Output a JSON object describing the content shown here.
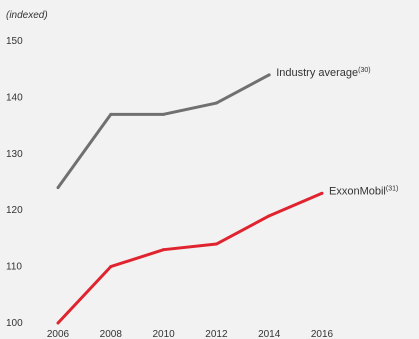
{
  "chart_data": {
    "type": "line",
    "unit_label": "(indexed)",
    "x": [
      2006,
      2008,
      2010,
      2012,
      2014,
      2016
    ],
    "x_tick_labels": [
      "2006",
      "2008",
      "2010",
      "2012",
      "2014",
      "2016"
    ],
    "y_tick_labels": [
      "150",
      "140",
      "130",
      "120",
      "110",
      "100"
    ],
    "y_ticks": [
      150,
      140,
      130,
      120,
      110,
      100
    ],
    "ylim": [
      100,
      150
    ],
    "xlim": [
      2006,
      2016
    ],
    "grid": false,
    "series": [
      {
        "name": "Industry average",
        "footnote": "(30)",
        "color": "#707070",
        "x": [
          2006,
          2008,
          2010,
          2012,
          2014
        ],
        "values": [
          124,
          137,
          137,
          139,
          144
        ]
      },
      {
        "name": "ExxonMobil",
        "footnote": "(31)",
        "color": "#e0242f",
        "x": [
          2006,
          2008,
          2010,
          2012,
          2014,
          2016
        ],
        "values": [
          100,
          110,
          113,
          114,
          119,
          123
        ]
      }
    ]
  }
}
